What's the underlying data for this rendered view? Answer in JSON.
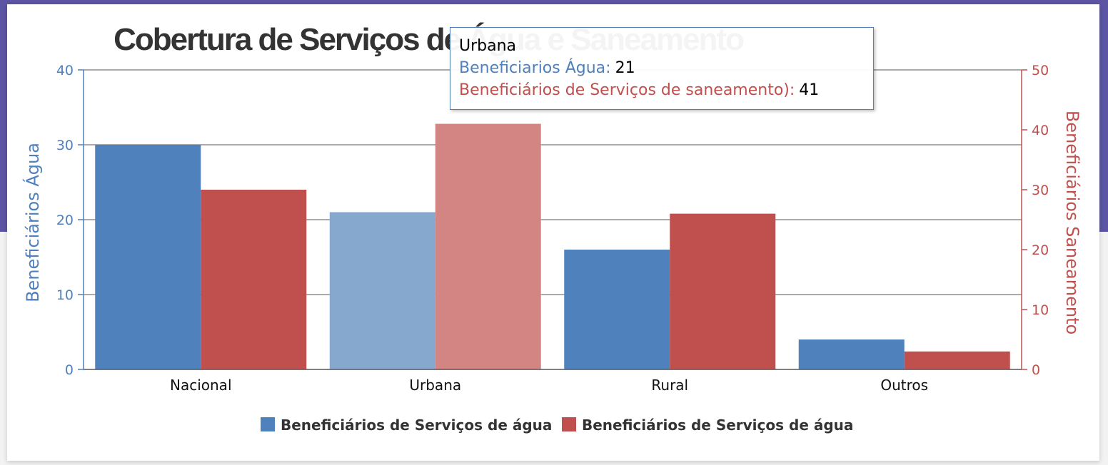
{
  "chart_data": {
    "type": "bar",
    "title": "Cobertura de Serviços de Água e Saneamento",
    "categories": [
      "Nacional",
      "Urbana",
      "Rural",
      "Outros"
    ],
    "series": [
      {
        "name": "Beneficiários de Serviços de água",
        "axis": "left",
        "color": "#4f81bd",
        "values": [
          30,
          21,
          16,
          4
        ]
      },
      {
        "name": "Beneficiários de Serviços de água",
        "axis": "right",
        "color": "#c0504d",
        "values": [
          30,
          41,
          26,
          3
        ]
      }
    ],
    "y_left": {
      "label": "Beneficiários Água",
      "ylim": [
        0,
        40
      ],
      "ticks": [
        "0",
        "10",
        "20",
        "30",
        "40"
      ]
    },
    "y_right": {
      "label": "Beneficiários Saneamento",
      "ylim": [
        0,
        50
      ],
      "ticks": [
        "0",
        "10",
        "20",
        "30",
        "40",
        "50"
      ]
    },
    "grid": true,
    "legend": "bottom",
    "highlighted_category": "Urbana"
  },
  "tooltip": {
    "title": "Urbana",
    "water_label": "Beneficiarios Água:",
    "water_value": "21",
    "sanitation_label": "Beneficiários de Serviços de saneamento):",
    "sanitation_value": "41"
  }
}
